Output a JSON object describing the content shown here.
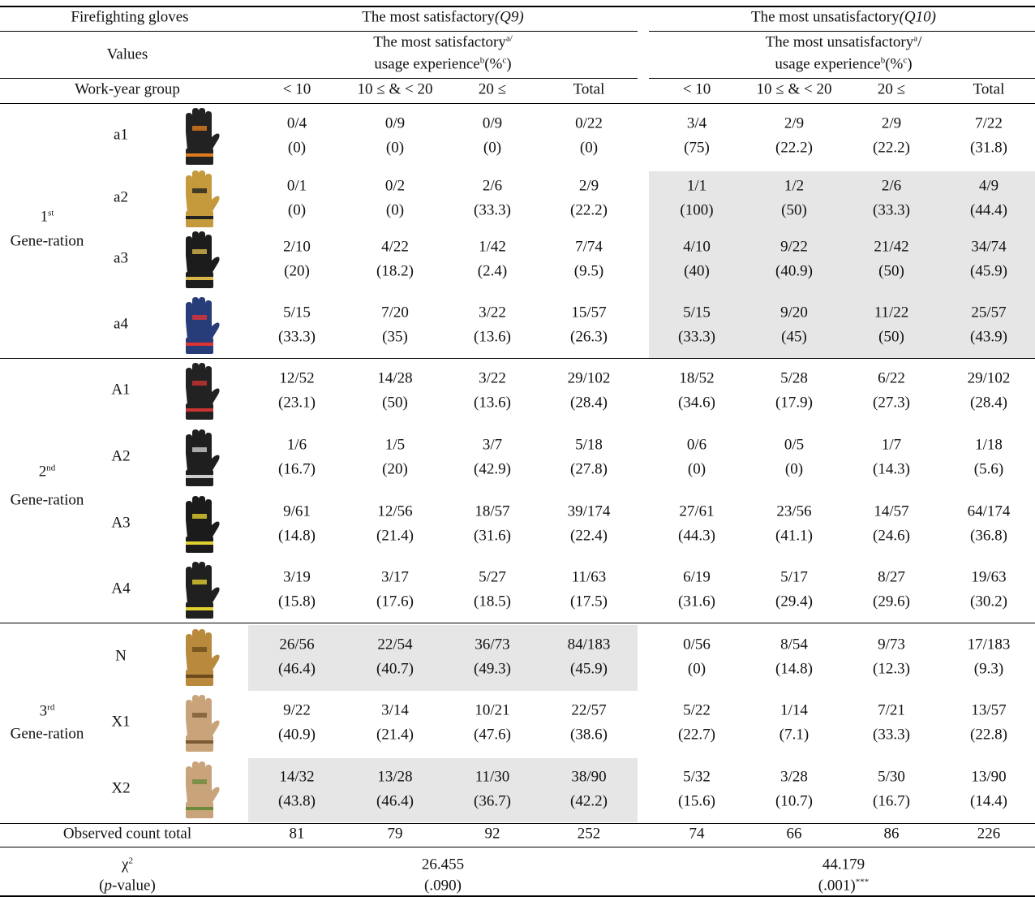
{
  "header": {
    "gloves": "Firefighting gloves",
    "satisfactory": {
      "text": "The most satisfactory",
      "code": "(Q9)"
    },
    "unsatisfactory": {
      "text": "The most unsatisfactory",
      "code": "(Q10)"
    }
  },
  "values_row": {
    "label": "Values",
    "satisfactory": {
      "line1": "The most satisfactory",
      "sup1": "a/",
      "line2": "usage experience",
      "sup2": "b",
      "pct": "(%",
      "sup3": "c",
      "close": ")"
    },
    "unsatisfactory": {
      "line1": "The most unsatisfactory",
      "sup1": "a",
      "slash": "/",
      "line2": "usage experience",
      "sup2": "b",
      "pct": "(%",
      "sup3": "c",
      "close": ")"
    }
  },
  "work_year": {
    "label": "Work-year group",
    "groups": [
      "< 10",
      "10 ≤ & < 20",
      "20 ≤",
      "Total"
    ]
  },
  "generations": [
    {
      "ordinal": "1",
      "suffix": "st",
      "label": "Gene-ration",
      "gloves": [
        {
          "id": "a1",
          "cells": [
            [
              "0/4",
              "(0)"
            ],
            [
              "0/9",
              "(0)"
            ],
            [
              "0/9",
              "(0)"
            ],
            [
              "0/22",
              "(0)"
            ],
            [
              "3/4",
              "(75)"
            ],
            [
              "2/9",
              "(22.2)"
            ],
            [
              "2/9",
              "(22.2)"
            ],
            [
              "7/22",
              "(31.8)"
            ]
          ]
        },
        {
          "id": "a2",
          "cells": [
            [
              "0/1",
              "(0)"
            ],
            [
              "0/2",
              "(0)"
            ],
            [
              "2/6",
              "(33.3)"
            ],
            [
              "2/9",
              "(22.2)"
            ],
            [
              "1/1",
              "(100)"
            ],
            [
              "1/2",
              "(50)"
            ],
            [
              "2/6",
              "(33.3)"
            ],
            [
              "4/9",
              "(44.4)"
            ]
          ]
        },
        {
          "id": "a3",
          "cells": [
            [
              "2/10",
              "(20)"
            ],
            [
              "4/22",
              "(18.2)"
            ],
            [
              "1/42",
              "(2.4)"
            ],
            [
              "7/74",
              "(9.5)"
            ],
            [
              "4/10",
              "(40)"
            ],
            [
              "9/22",
              "(40.9)"
            ],
            [
              "21/42",
              "(50)"
            ],
            [
              "34/74",
              "(45.9)"
            ]
          ]
        },
        {
          "id": "a4",
          "cells": [
            [
              "5/15",
              "(33.3)"
            ],
            [
              "7/20",
              "(35)"
            ],
            [
              "3/22",
              "(13.6)"
            ],
            [
              "15/57",
              "(26.3)"
            ],
            [
              "5/15",
              "(33.3)"
            ],
            [
              "9/20",
              "(45)"
            ],
            [
              "11/22",
              "(50)"
            ],
            [
              "25/57",
              "(43.9)"
            ]
          ]
        }
      ]
    },
    {
      "ordinal": "2",
      "suffix": "nd",
      "label": "Gene-ration",
      "gloves": [
        {
          "id": "A1",
          "cells": [
            [
              "12/52",
              "(23.1)"
            ],
            [
              "14/28",
              "(50)"
            ],
            [
              "3/22",
              "(13.6)"
            ],
            [
              "29/102",
              "(28.4)"
            ],
            [
              "18/52",
              "(34.6)"
            ],
            [
              "5/28",
              "(17.9)"
            ],
            [
              "6/22",
              "(27.3)"
            ],
            [
              "29/102",
              "(28.4)"
            ]
          ]
        },
        {
          "id": "A2",
          "cells": [
            [
              "1/6",
              "(16.7)"
            ],
            [
              "1/5",
              "(20)"
            ],
            [
              "3/7",
              "(42.9)"
            ],
            [
              "5/18",
              "(27.8)"
            ],
            [
              "0/6",
              "(0)"
            ],
            [
              "0/5",
              "(0)"
            ],
            [
              "1/7",
              "(14.3)"
            ],
            [
              "1/18",
              "(5.6)"
            ]
          ]
        },
        {
          "id": "A3",
          "cells": [
            [
              "9/61",
              "(14.8)"
            ],
            [
              "12/56",
              "(21.4)"
            ],
            [
              "18/57",
              "(31.6)"
            ],
            [
              "39/174",
              "(22.4)"
            ],
            [
              "27/61",
              "(44.3)"
            ],
            [
              "23/56",
              "(41.1)"
            ],
            [
              "14/57",
              "(24.6)"
            ],
            [
              "64/174",
              "(36.8)"
            ]
          ]
        },
        {
          "id": "A4",
          "cells": [
            [
              "3/19",
              "(15.8)"
            ],
            [
              "3/17",
              "(17.6)"
            ],
            [
              "5/27",
              "(18.5)"
            ],
            [
              "11/63",
              "(17.5)"
            ],
            [
              "6/19",
              "(31.6)"
            ],
            [
              "5/17",
              "(29.4)"
            ],
            [
              "8/27",
              "(29.6)"
            ],
            [
              "19/63",
              "(30.2)"
            ]
          ]
        }
      ]
    },
    {
      "ordinal": "3",
      "suffix": "rd",
      "label": "Gene-ration",
      "gloves": [
        {
          "id": "N",
          "cells": [
            [
              "26/56",
              "(46.4)"
            ],
            [
              "22/54",
              "(40.7)"
            ],
            [
              "36/73",
              "(49.3)"
            ],
            [
              "84/183",
              "(45.9)"
            ],
            [
              "0/56",
              "(0)"
            ],
            [
              "8/54",
              "(14.8)"
            ],
            [
              "9/73",
              "(12.3)"
            ],
            [
              "17/183",
              "(9.3)"
            ]
          ]
        },
        {
          "id": "X1",
          "cells": [
            [
              "9/22",
              "(40.9)"
            ],
            [
              "3/14",
              "(21.4)"
            ],
            [
              "10/21",
              "(47.6)"
            ],
            [
              "22/57",
              "(38.6)"
            ],
            [
              "5/22",
              "(22.7)"
            ],
            [
              "1/14",
              "(7.1)"
            ],
            [
              "7/21",
              "(33.3)"
            ],
            [
              "13/57",
              "(22.8)"
            ]
          ]
        },
        {
          "id": "X2",
          "cells": [
            [
              "14/32",
              "(43.8)"
            ],
            [
              "13/28",
              "(46.4)"
            ],
            [
              "11/30",
              "(36.7)"
            ],
            [
              "38/90",
              "(42.2)"
            ],
            [
              "5/32",
              "(15.6)"
            ],
            [
              "3/28",
              "(10.7)"
            ],
            [
              "5/30",
              "(16.7)"
            ],
            [
              "13/90",
              "(14.4)"
            ]
          ]
        }
      ]
    }
  ],
  "observed": {
    "label": "Observed count total",
    "values": [
      81,
      79,
      92,
      252,
      74,
      66,
      86,
      226
    ]
  },
  "chi_square": {
    "symbol": "χ",
    "sup": "2",
    "label": [
      "(",
      "p",
      "-value)"
    ],
    "satisfactory": {
      "value": "26.455",
      "p": "(.090)"
    },
    "unsatisfactory": {
      "value": "44.179",
      "p": "(.001)",
      "sig": "***"
    }
  }
}
